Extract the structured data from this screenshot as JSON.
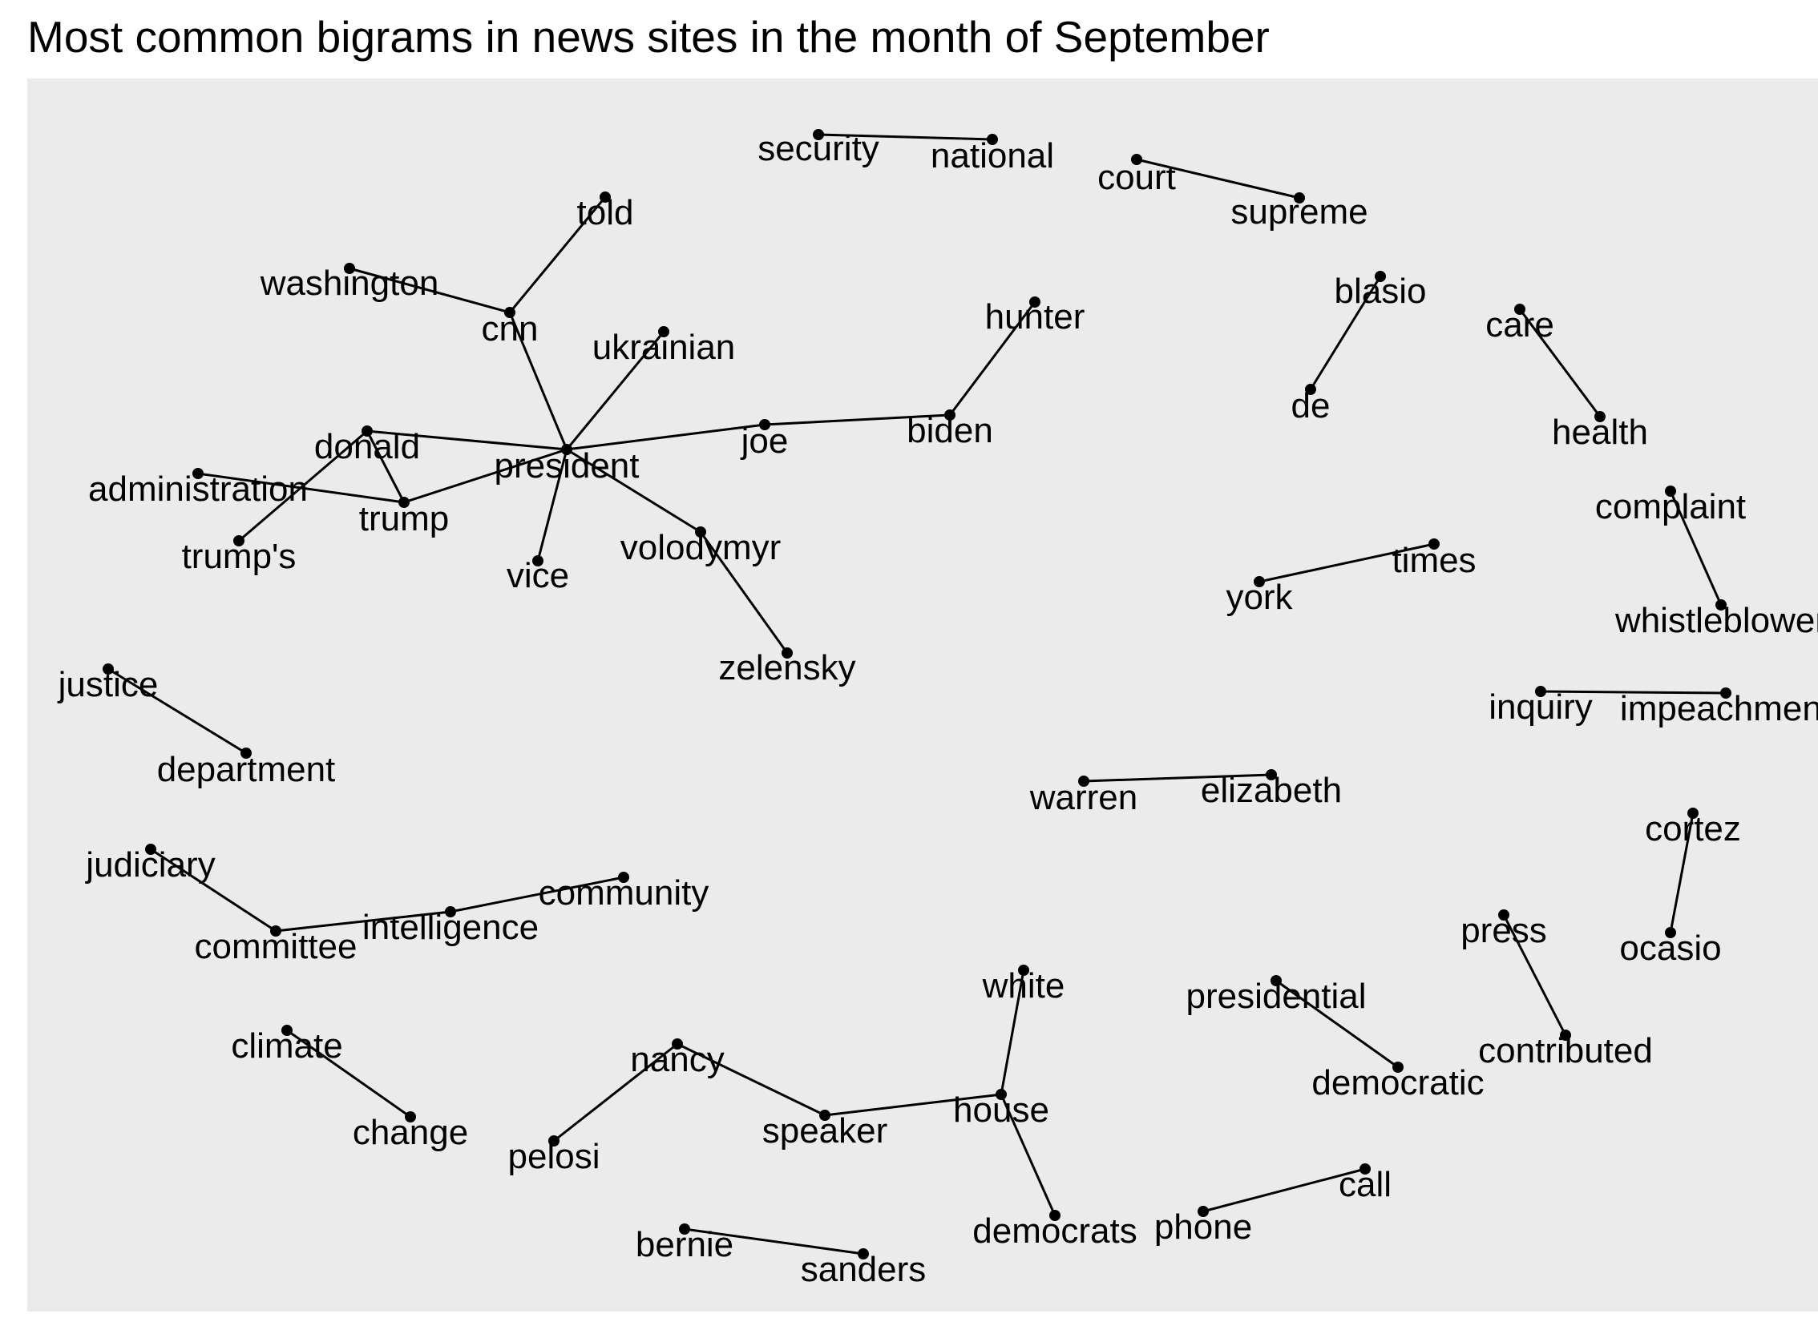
{
  "title": "Most common bigrams in news sites in the month of September",
  "colors": {
    "panel": "#ebebeb",
    "edge": "#000000",
    "node": "#000000",
    "text": "#000000"
  },
  "graph": {
    "nodes": [
      {
        "id": "security",
        "label": "security"
      },
      {
        "id": "national",
        "label": "national"
      },
      {
        "id": "court",
        "label": "court"
      },
      {
        "id": "supreme",
        "label": "supreme"
      },
      {
        "id": "told",
        "label": "told"
      },
      {
        "id": "washington",
        "label": "washington"
      },
      {
        "id": "cnn",
        "label": "cnn"
      },
      {
        "id": "ukrainian",
        "label": "ukrainian"
      },
      {
        "id": "hunter",
        "label": "hunter"
      },
      {
        "id": "blasio",
        "label": "blasio"
      },
      {
        "id": "care",
        "label": "care"
      },
      {
        "id": "de",
        "label": "de"
      },
      {
        "id": "health",
        "label": "health"
      },
      {
        "id": "donald",
        "label": "donald"
      },
      {
        "id": "president",
        "label": "president"
      },
      {
        "id": "joe",
        "label": "joe"
      },
      {
        "id": "biden",
        "label": "biden"
      },
      {
        "id": "administration",
        "label": "administration"
      },
      {
        "id": "trump",
        "label": "trump"
      },
      {
        "id": "trumps",
        "label": "trump's"
      },
      {
        "id": "vice",
        "label": "vice"
      },
      {
        "id": "volodymyr",
        "label": "volodymyr"
      },
      {
        "id": "zelensky",
        "label": "zelensky"
      },
      {
        "id": "complaint",
        "label": "complaint"
      },
      {
        "id": "whistleblower",
        "label": "whistleblower"
      },
      {
        "id": "york",
        "label": "york"
      },
      {
        "id": "times",
        "label": "times"
      },
      {
        "id": "justice",
        "label": "justice"
      },
      {
        "id": "department",
        "label": "department"
      },
      {
        "id": "inquiry",
        "label": "inquiry"
      },
      {
        "id": "impeachment",
        "label": "impeachment"
      },
      {
        "id": "warren",
        "label": "warren"
      },
      {
        "id": "elizabeth",
        "label": "elizabeth"
      },
      {
        "id": "cortez",
        "label": "cortez"
      },
      {
        "id": "ocasio",
        "label": "ocasio"
      },
      {
        "id": "judiciary",
        "label": "judiciary"
      },
      {
        "id": "committee",
        "label": "committee"
      },
      {
        "id": "intelligence",
        "label": "intelligence"
      },
      {
        "id": "community",
        "label": "community"
      },
      {
        "id": "press",
        "label": "press"
      },
      {
        "id": "contributed",
        "label": "contributed"
      },
      {
        "id": "white",
        "label": "white"
      },
      {
        "id": "presidential",
        "label": "presidential"
      },
      {
        "id": "democratic",
        "label": "democratic"
      },
      {
        "id": "climate",
        "label": "climate"
      },
      {
        "id": "change",
        "label": "change"
      },
      {
        "id": "nancy",
        "label": "nancy"
      },
      {
        "id": "pelosi",
        "label": "pelosi"
      },
      {
        "id": "speaker",
        "label": "speaker"
      },
      {
        "id": "house",
        "label": "house"
      },
      {
        "id": "democrats",
        "label": "democrats"
      },
      {
        "id": "phone",
        "label": "phone"
      },
      {
        "id": "call",
        "label": "call"
      },
      {
        "id": "bernie",
        "label": "bernie"
      },
      {
        "id": "sanders",
        "label": "sanders"
      }
    ],
    "edges": [
      [
        "security",
        "national"
      ],
      [
        "court",
        "supreme"
      ],
      [
        "cnn",
        "told"
      ],
      [
        "washington",
        "cnn"
      ],
      [
        "cnn",
        "president"
      ],
      [
        "ukrainian",
        "president"
      ],
      [
        "hunter",
        "biden"
      ],
      [
        "joe",
        "biden"
      ],
      [
        "president",
        "joe"
      ],
      [
        "blasio",
        "de"
      ],
      [
        "care",
        "health"
      ],
      [
        "donald",
        "president"
      ],
      [
        "donald",
        "trump"
      ],
      [
        "trumps",
        "donald"
      ],
      [
        "administration",
        "trump"
      ],
      [
        "president",
        "trump"
      ],
      [
        "vice",
        "president"
      ],
      [
        "president",
        "volodymyr"
      ],
      [
        "volodymyr",
        "zelensky"
      ],
      [
        "complaint",
        "whistleblower"
      ],
      [
        "york",
        "times"
      ],
      [
        "justice",
        "department"
      ],
      [
        "inquiry",
        "impeachment"
      ],
      [
        "warren",
        "elizabeth"
      ],
      [
        "cortez",
        "ocasio"
      ],
      [
        "judiciary",
        "committee"
      ],
      [
        "committee",
        "intelligence"
      ],
      [
        "intelligence",
        "community"
      ],
      [
        "press",
        "contributed"
      ],
      [
        "presidential",
        "democratic"
      ],
      [
        "climate",
        "change"
      ],
      [
        "nancy",
        "pelosi"
      ],
      [
        "nancy",
        "speaker"
      ],
      [
        "speaker",
        "house"
      ],
      [
        "white",
        "house"
      ],
      [
        "house",
        "democrats"
      ],
      [
        "phone",
        "call"
      ],
      [
        "bernie",
        "sanders"
      ]
    ]
  }
}
